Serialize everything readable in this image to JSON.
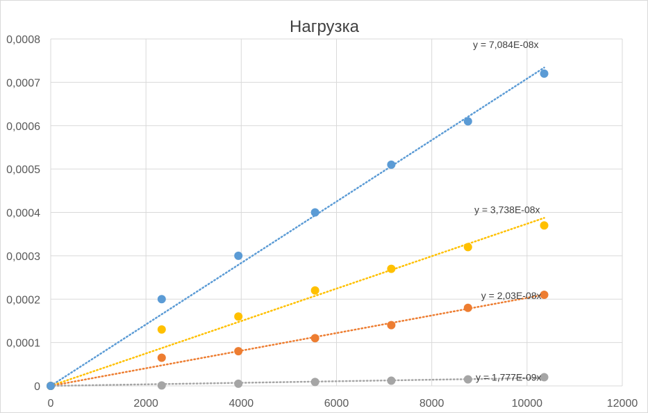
{
  "chart_data": {
    "type": "scatter",
    "title": "Нагрузка",
    "xlabel": "",
    "ylabel": "",
    "xlim": [
      0,
      12000
    ],
    "ylim": [
      0,
      0.0008
    ],
    "grid": true,
    "legend": "none",
    "x_ticks": [
      "0",
      "2000",
      "4000",
      "6000",
      "8000",
      "10000",
      "12000"
    ],
    "y_ticks": [
      "0",
      "0,0001",
      "0,0002",
      "0,0003",
      "0,0004",
      "0,0005",
      "0,0006",
      "0,0007",
      "0,0008"
    ],
    "series": [
      {
        "color": "#5b9bd5",
        "x": [
          0,
          2330,
          3940,
          5550,
          7150,
          8760,
          10360
        ],
        "y": [
          0,
          0.0002,
          0.0003,
          0.0004,
          0.00051,
          0.00061,
          0.00072
        ],
        "trendline": {
          "type": "linear-through-origin",
          "slope": 7.084e-08,
          "x_end": 10360,
          "label": "y = 7,084E-08x"
        }
      },
      {
        "color": "#ffc000",
        "x": [
          0,
          2330,
          3940,
          5550,
          7150,
          8760,
          10360
        ],
        "y": [
          0,
          0.00013,
          0.00016,
          0.00022,
          0.00027,
          0.00032,
          0.00037
        ],
        "trendline": {
          "type": "linear-through-origin",
          "slope": 3.738e-08,
          "x_end": 10360,
          "label": "y = 3,738E-08x"
        }
      },
      {
        "color": "#ed7d31",
        "x": [
          0,
          2330,
          3940,
          5550,
          7150,
          8760,
          10360
        ],
        "y": [
          0,
          6.5e-05,
          8e-05,
          0.00011,
          0.00014,
          0.00018,
          0.00021
        ],
        "trendline": {
          "type": "linear-through-origin",
          "slope": 2.03e-08,
          "x_end": 10360,
          "label": "y = 2,03E-08x"
        }
      },
      {
        "color": "#a5a5a5",
        "x": [
          0,
          2330,
          3940,
          5550,
          7150,
          8760,
          10360
        ],
        "y": [
          0,
          1e-06,
          5e-06,
          9e-06,
          1.2e-05,
          1.5e-05,
          2e-05
        ],
        "trendline": {
          "type": "linear-through-origin",
          "slope": 1.777e-09,
          "x_end": 10360,
          "label": "y = 1,777E-09x"
        }
      }
    ]
  }
}
